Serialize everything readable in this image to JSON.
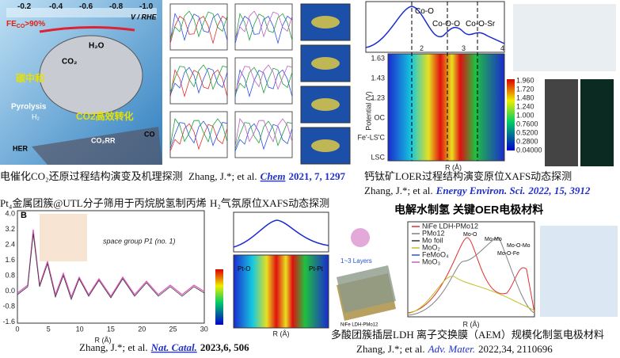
{
  "co2": {
    "potential_ticks": [
      "-0.2",
      "-0.4",
      "-0.6",
      "-0.8",
      "-1.0"
    ],
    "potential_unit": "V / RHE",
    "fe": "FE",
    "fe_sub": "CO",
    "fe_value": ">90%",
    "h2o": "H₂O",
    "co2": "CO₂",
    "carbon_neutral": "碳中和",
    "pyrolysis": "Pyrolysis",
    "h2": "H₂",
    "conversion": "CO2高效转化",
    "co": "CO",
    "co2rr": "CO₂RR",
    "her": "HER",
    "caption": "电催化CO₂还原过程结构演变及机理探测"
  },
  "chem": {
    "citation": {
      "authors": "Zhang, J.*; et al.",
      "journal": "Chem",
      "details": "2021, 7, 1297"
    }
  },
  "loer": {
    "peaks": [
      "Co-O",
      "Co-O-O",
      "Co-O-Sr"
    ],
    "x_ticks": [
      "2",
      "3",
      "4"
    ],
    "x_label": "R (Å)",
    "y_label": "Potential (V)",
    "y_ticks": [
      "1.63",
      "1.43",
      "1.23",
      "OC",
      "Fe'-LS'C",
      "LSC"
    ],
    "colorbar": [
      "1.960",
      "1.720",
      "1.480",
      "1.240",
      "1.000",
      "0.7600",
      "0.5200",
      "0.2800",
      "0.04000"
    ],
    "caption": "钙钛矿LOER过程结构演变原位XAFS动态探测",
    "citation": {
      "authors": "Zhang, J.*; et al.",
      "journal": "Energy Environ. Sci.",
      "details": "2022, 15, 3912"
    }
  },
  "pt4": {
    "title": "Pt₄金属团簇@UTL分子筛用于丙烷脱氢制丙烯",
    "panel": "B",
    "y_ticks": [
      "4.0",
      "3.2",
      "2.4",
      "1.6",
      "0.8",
      "0.0",
      "-0.8",
      "-1.6"
    ],
    "x_ticks": [
      "0",
      "5",
      "10",
      "15",
      "20",
      "25",
      "30"
    ],
    "x_label": "R (Å)",
    "space_group": "space group P1 (no. 1)",
    "citation": {
      "authors": "Zhang, J.*; et al.",
      "journal": "Nat. Catal.",
      "details": "2023,6, 506"
    }
  },
  "h2": {
    "title": "H₂气氛原位XAFS动态探测",
    "x_label": "R (Å)",
    "pt_o": "Pt-O",
    "pt_pt": "Pt-Pt"
  },
  "oer": {
    "title": "电解水制氢 关键OER电极材料",
    "layers": "1~3 Layers",
    "material": "NiFe LDH-PMo12",
    "legend": [
      "NiFe LDH-PMo12",
      "PMo12",
      "Mo foil",
      "MoO₂",
      "FeMoO₄",
      "MoO₃"
    ],
    "peaks": [
      "Mo-O",
      "Mo-Mo",
      "Mo-O-Mo",
      "Mo-O-Fe"
    ],
    "x_label": "R (Å)",
    "caption": "多酸团簇插层LDH 离子交换膜（AEM）规模化制氢电极材料",
    "citation": {
      "authors": "Zhang, J.*; et al.",
      "journal": "Adv. Mater.",
      "details": "2022,34, 2110696"
    }
  }
}
